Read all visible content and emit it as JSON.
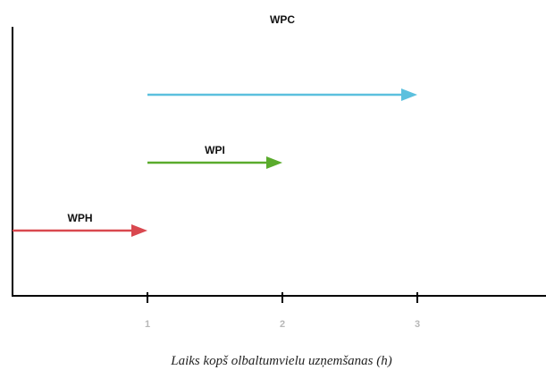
{
  "chart_data": {
    "type": "timeline",
    "title": "",
    "xlabel": "Laiks kopš olbaltumvielu uzņemšanas (h)",
    "ylabel": "",
    "xlim": [
      0,
      4
    ],
    "x_ticks": [
      "1",
      "2",
      "3"
    ],
    "x_tick_values": [
      1,
      2,
      3
    ],
    "grid": false,
    "legend": "none",
    "series": [
      {
        "name": "WPC",
        "start": 1,
        "end": 3,
        "color": "#5bc0de"
      },
      {
        "name": "WPI",
        "start": 1,
        "end": 2,
        "color": "#5aab2c"
      },
      {
        "name": "WPH",
        "start": 0,
        "end": 1,
        "color": "#d9484f"
      }
    ]
  }
}
